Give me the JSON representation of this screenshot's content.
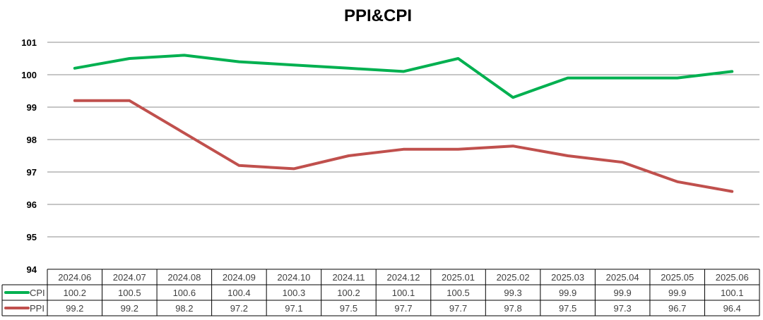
{
  "chart_data": {
    "type": "line",
    "title": "PPI&CPI",
    "categories": [
      "2024.06",
      "2024.07",
      "2024.08",
      "2024.09",
      "2024.10",
      "2024.11",
      "2024.12",
      "2025.01",
      "2025.02",
      "2025.03",
      "2025.04",
      "2025.05",
      "2025.06"
    ],
    "series": [
      {
        "name": "CPI",
        "color": "#00b050",
        "values": [
          100.2,
          100.5,
          100.6,
          100.4,
          100.3,
          100.2,
          100.1,
          100.5,
          99.3,
          99.9,
          99.9,
          99.9,
          100.1
        ],
        "labels": [
          "100.2",
          "100.5",
          "100.6",
          "100.4",
          "100.3",
          "100.2",
          "100.1",
          "100.5",
          "99.3",
          "99.9",
          "99.9",
          "99.9",
          "100.1"
        ]
      },
      {
        "name": "PPI",
        "color": "#c0504d",
        "values": [
          99.2,
          99.2,
          98.2,
          97.2,
          97.1,
          97.5,
          97.7,
          97.7,
          97.8,
          97.5,
          97.3,
          96.7,
          96.4
        ],
        "labels": [
          "99.2",
          "99.2",
          "98.2",
          "97.2",
          "97.1",
          "97.5",
          "97.7",
          "97.7",
          "97.8",
          "97.5",
          "97.3",
          "96.7",
          "96.4"
        ]
      }
    ],
    "ylim": [
      94,
      101
    ],
    "yticks": [
      "94",
      "95",
      "96",
      "97",
      "98",
      "99",
      "100",
      "101"
    ],
    "grid": true,
    "legend": "data-table"
  }
}
